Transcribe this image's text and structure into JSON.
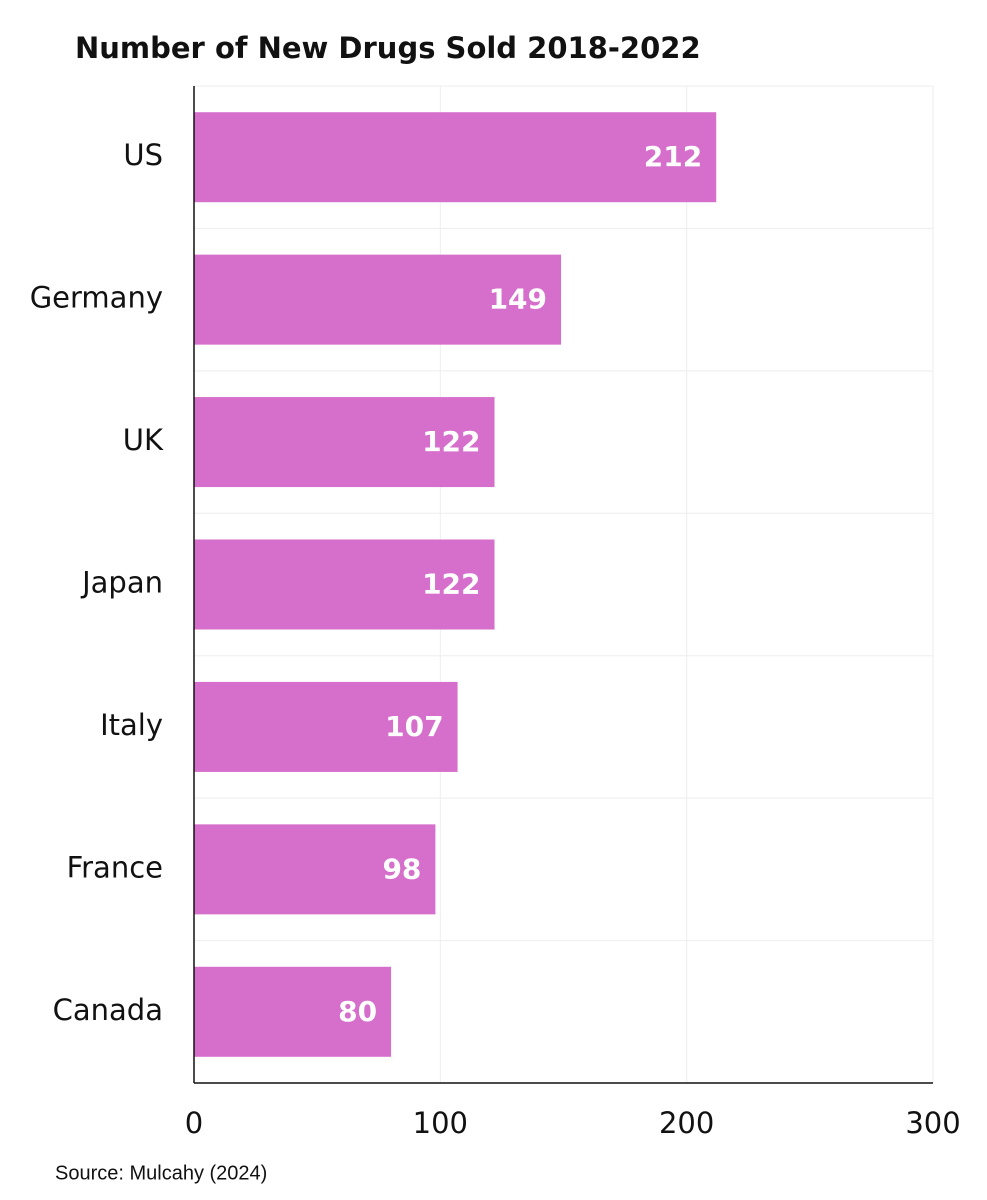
{
  "chart_data": {
    "type": "bar",
    "orientation": "horizontal",
    "title": "Number of New Drugs Sold 2018-2022",
    "categories": [
      "US",
      "Germany",
      "UK",
      "Japan",
      "Italy",
      "France",
      "Canada"
    ],
    "values": [
      212,
      149,
      122,
      122,
      107,
      98,
      80
    ],
    "color": "#d66fcb",
    "xlim": [
      0,
      300
    ],
    "xticks": [
      0,
      100,
      200,
      300
    ],
    "grid": true,
    "source": "Source: Mulcahy (2024)"
  }
}
